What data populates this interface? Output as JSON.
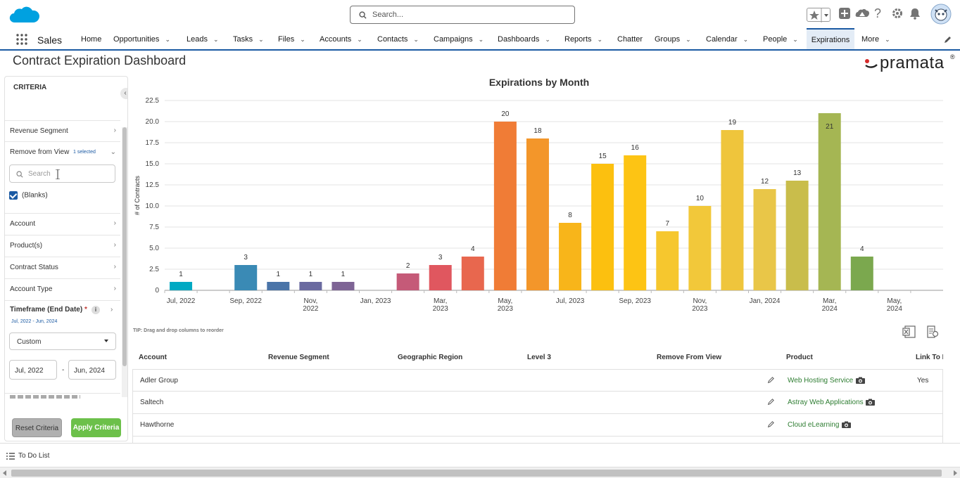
{
  "app": {
    "name": "Sales"
  },
  "search": {
    "placeholder": "Search..."
  },
  "nav": [
    {
      "label": "Home",
      "menu": false
    },
    {
      "label": "Opportunities",
      "menu": true
    },
    {
      "label": "Leads",
      "menu": true
    },
    {
      "label": "Tasks",
      "menu": true
    },
    {
      "label": "Files",
      "menu": true
    },
    {
      "label": "Accounts",
      "menu": true
    },
    {
      "label": "Contacts",
      "menu": true
    },
    {
      "label": "Campaigns",
      "menu": true
    },
    {
      "label": "Dashboards",
      "menu": true
    },
    {
      "label": "Reports",
      "menu": true
    },
    {
      "label": "Chatter",
      "menu": false
    },
    {
      "label": "Groups",
      "menu": true
    },
    {
      "label": "Calendar",
      "menu": true
    },
    {
      "label": "People",
      "menu": true
    },
    {
      "label": "Expirations",
      "menu": false,
      "active": true
    },
    {
      "label": "More",
      "menu": true
    }
  ],
  "page": {
    "title": "Contract Expiration Dashboard",
    "brand": "pramata",
    "brand_mark": "®"
  },
  "criteria": {
    "title": "CRITERIA",
    "revenue_segment": "Revenue Segment",
    "remove_from_view": "Remove from View",
    "remove_selected": "1 selected",
    "search_placeholder": "Search",
    "blanks_label": "(Blanks)",
    "account": "Account",
    "products": "Product(s)",
    "contract_status": "Contract Status",
    "account_type": "Account Type",
    "timeframe_title": "Timeframe (End Date)",
    "required_mark": "*",
    "timeframe_range": "Jul, 2022 - Jun, 2024",
    "timeframe_select": "Custom",
    "date_from": "Jul, 2022",
    "date_sep": "-",
    "date_to": "Jun, 2024",
    "reset_label": "Reset Criteria",
    "apply_label": "Apply Criteria"
  },
  "chart_data": {
    "type": "bar",
    "title": "Expirations by Month",
    "xlabel": "",
    "ylabel": "# of Contracts",
    "ylim": [
      0,
      22.5
    ],
    "yticks": [
      "0",
      "2.5",
      "5.0",
      "7.5",
      "10.0",
      "12.5",
      "15.0",
      "17.5",
      "20.0",
      "22.5"
    ],
    "grid": true,
    "categories": [
      "Jul, 2022",
      "Aug, 2022",
      "Sep, 2022",
      "Oct, 2022",
      "Nov, 2022",
      "Dec, 2022",
      "Jan, 2023",
      "Feb, 2023",
      "Mar, 2023",
      "Apr, 2023",
      "May, 2023",
      "Jun, 2023",
      "Jul, 2023",
      "Aug, 2023",
      "Sep, 2023",
      "Oct, 2023",
      "Nov, 2023",
      "Dec, 2023",
      "Jan, 2024",
      "Feb, 2024",
      "Mar, 2024",
      "Apr, 2024",
      "May, 2024",
      "Jun, 2024"
    ],
    "values": [
      1,
      0,
      3,
      1,
      1,
      1,
      0,
      2,
      3,
      4,
      20,
      18,
      8,
      15,
      16,
      7,
      10,
      19,
      12,
      13,
      21,
      4,
      0,
      0
    ],
    "colors": [
      "#00a9c3",
      "#3a8ab5",
      "#3a8ab5",
      "#4a74a8",
      "#6a6aa0",
      "#7e6495",
      "#9a5f8a",
      "#c55a78",
      "#e0575f",
      "#e8674e",
      "#f07c36",
      "#f3962a",
      "#f8b51a",
      "#fcc00f",
      "#fdc414",
      "#f6c72e",
      "#f2c83a",
      "#efc53c",
      "#e9c648",
      "#c9bd4b",
      "#a5b653",
      "#7ba84e",
      "#7ba84e",
      "#7ba84e"
    ],
    "xtick_labels": [
      {
        "i": 0,
        "lines": [
          "Jul, 2022"
        ]
      },
      {
        "i": 2,
        "lines": [
          "Sep, 2022"
        ]
      },
      {
        "i": 4,
        "lines": [
          "Nov,",
          "2022"
        ]
      },
      {
        "i": 6,
        "lines": [
          "Jan, 2023"
        ]
      },
      {
        "i": 8,
        "lines": [
          "Mar,",
          "2023"
        ]
      },
      {
        "i": 10,
        "lines": [
          "May,",
          "2023"
        ]
      },
      {
        "i": 12,
        "lines": [
          "Jul, 2023"
        ]
      },
      {
        "i": 14,
        "lines": [
          "Sep, 2023"
        ]
      },
      {
        "i": 16,
        "lines": [
          "Nov,",
          "2023"
        ]
      },
      {
        "i": 18,
        "lines": [
          "Jan, 2024"
        ]
      },
      {
        "i": 20,
        "lines": [
          "Mar,",
          "2024"
        ]
      },
      {
        "i": 22,
        "lines": [
          "May,",
          "2024"
        ]
      }
    ]
  },
  "table": {
    "tip": "TIP: Drag and drop columns to reorder",
    "headers": [
      "Account",
      "Revenue Segment",
      "Geographic Region",
      "Level 3",
      "Remove From View",
      "Product",
      "Link To P"
    ],
    "rows": [
      {
        "account": "Adler Group",
        "product": "Web Hosting Service",
        "link": "Yes"
      },
      {
        "account": "Saltech",
        "product": "Astray Web Applications",
        "link": ""
      },
      {
        "account": "Hawthorne",
        "product": "Cloud eLearning",
        "link": ""
      }
    ]
  },
  "footer": {
    "todo": "To Do List"
  }
}
